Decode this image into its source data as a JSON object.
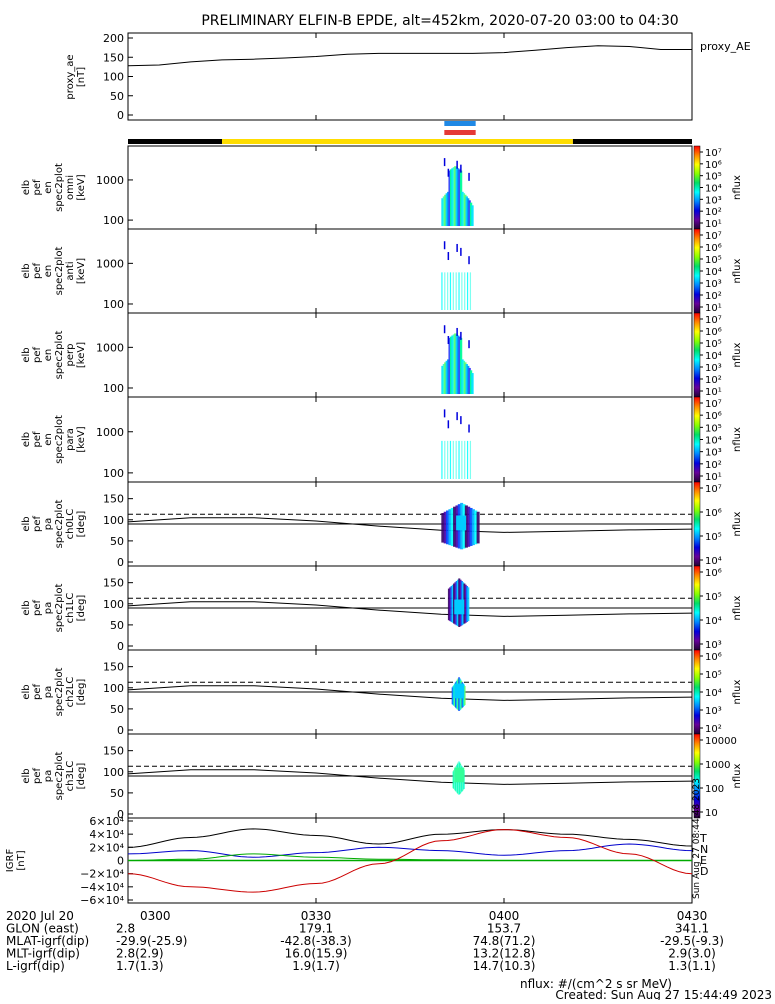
{
  "title": "PRELIMINARY ELFIN-B EPDE, alt=452km, 2020-07-20 03:00 to 04:30",
  "time_axis": {
    "ticks": [
      {
        "label": "0300",
        "minute": 0
      },
      {
        "label": "0330",
        "minute": 30
      },
      {
        "label": "0400",
        "minute": 60
      },
      {
        "label": "0430",
        "minute": 90
      }
    ]
  },
  "panels": [
    {
      "ylabel": [
        "proxy_ae",
        "[nT]"
      ],
      "ytick_labels": [
        "200",
        "150",
        "100",
        "50",
        "0"
      ],
      "right_label": "proxy_AE"
    },
    {
      "ylabel": [
        "elb",
        "pef",
        "en",
        "spec2plot",
        "omni",
        "[keV]"
      ],
      "ytick_labels": [
        "1000",
        "100"
      ],
      "cbar_ticks": [
        "10⁷",
        "10⁶",
        "10⁵",
        "10⁴",
        "10³",
        "10²",
        "10¹"
      ],
      "cbar_label": "nflux"
    },
    {
      "ylabel": [
        "elb",
        "pef",
        "en",
        "spec2plot",
        "anti",
        "[keV]"
      ],
      "ytick_labels": [
        "1000",
        "100"
      ],
      "cbar_ticks": [
        "10⁷",
        "10⁶",
        "10⁵",
        "10⁴",
        "10³",
        "10²",
        "10¹"
      ],
      "cbar_label": "nflux"
    },
    {
      "ylabel": [
        "elb",
        "pef",
        "en",
        "spec2plot",
        "perp",
        "[keV]"
      ],
      "ytick_labels": [
        "1000",
        "100"
      ],
      "cbar_ticks": [
        "10⁷",
        "10⁶",
        "10⁵",
        "10⁴",
        "10³",
        "10²",
        "10¹"
      ],
      "cbar_label": "nflux"
    },
    {
      "ylabel": [
        "elb",
        "pef",
        "en",
        "spec2plot",
        "para",
        "[keV]"
      ],
      "ytick_labels": [
        "1000",
        "100"
      ],
      "cbar_ticks": [
        "10⁷",
        "10⁶",
        "10⁵",
        "10⁴",
        "10³",
        "10²",
        "10¹"
      ],
      "cbar_label": "nflux"
    },
    {
      "ylabel": [
        "elb",
        "pef",
        "pa",
        "spec2plot",
        "ch0LC",
        "[deg]"
      ],
      "ytick_labels": [
        "150",
        "100",
        "50",
        "0"
      ],
      "cbar_ticks": [
        "10⁷",
        "10⁶",
        "10⁵",
        "10⁴"
      ],
      "cbar_label": "nflux"
    },
    {
      "ylabel": [
        "elb",
        "pef",
        "pa",
        "spec2plot",
        "ch1LC",
        "[deg]"
      ],
      "ytick_labels": [
        "150",
        "100",
        "50",
        "0"
      ],
      "cbar_ticks": [
        "10⁶",
        "10⁵",
        "10⁴",
        "10³"
      ],
      "cbar_label": "nflux"
    },
    {
      "ylabel": [
        "elb",
        "pef",
        "pa",
        "spec2plot",
        "ch2LC",
        "[deg]"
      ],
      "ytick_labels": [
        "150",
        "100",
        "50",
        "0"
      ],
      "cbar_ticks": [
        "10⁶",
        "10⁵",
        "10⁴",
        "10³",
        "10²"
      ],
      "cbar_label": "nflux"
    },
    {
      "ylabel": [
        "elb",
        "pef",
        "pa",
        "spec2plot",
        "ch3LC",
        "[deg]"
      ],
      "ytick_labels": [
        "150",
        "100",
        "50",
        "0"
      ],
      "cbar_ticks": [
        "10000",
        "1000",
        "100",
        "10"
      ],
      "cbar_label": "nflux"
    },
    {
      "ylabel": [
        "IGRF",
        "[nT]"
      ],
      "ytick_labels": [
        "6×10⁴",
        "4×10⁴",
        "2×10⁴",
        "0",
        "−2×10⁴",
        "−4×10⁴",
        "−6×10⁴"
      ],
      "legend": [
        "T",
        "N",
        "E",
        "D"
      ],
      "side_text": "Sun Aug 27 08:44:48 2023"
    }
  ],
  "chart_data": {
    "type": "line",
    "x_units": "minutes after 2020-07-20 03:00",
    "xlim": [
      0,
      90
    ],
    "proxy_ae": {
      "ylim": [
        0,
        200
      ],
      "x": [
        0,
        5,
        10,
        15,
        20,
        25,
        30,
        35,
        40,
        45,
        50,
        55,
        60,
        65,
        70,
        75,
        80,
        85,
        90
      ],
      "y": [
        128,
        130,
        138,
        143,
        145,
        148,
        152,
        158,
        160,
        160,
        160,
        160,
        162,
        168,
        175,
        180,
        178,
        170,
        170
      ]
    },
    "science_zone_bar": {
      "segments": [
        {
          "start": 0,
          "end": 15,
          "color": "#000000"
        },
        {
          "start": 15,
          "end": 71,
          "color": "#ffdd00"
        },
        {
          "start": 71,
          "end": 90,
          "color": "#000000"
        }
      ],
      "markers": [
        {
          "start": 50,
          "end": 55,
          "color": "#1e88e5"
        },
        {
          "start": 50,
          "end": 55,
          "color": "#e53935"
        }
      ]
    },
    "energy_spectrograms": {
      "ylim_keV": [
        60,
        7000
      ],
      "burst_minutes": [
        50,
        55
      ],
      "peak_flux": [
        100000,
        10000,
        100000,
        10000
      ]
    },
    "pitch_angle_spectrograms": {
      "ylim_deg": [
        0,
        180
      ],
      "burst_minutes": [
        50,
        56
      ],
      "x": [
        0,
        10,
        20,
        30,
        40,
        50,
        60,
        70,
        80,
        90
      ],
      "loss_cone": [
        95,
        105,
        105,
        97,
        85,
        75,
        70,
        73,
        76,
        78
      ],
      "anti_loss_cone_dashed": [
        113,
        113,
        113,
        113,
        113,
        113,
        113,
        113,
        113,
        113
      ],
      "loss_cone_solid_flat": [
        90,
        90,
        90,
        90,
        90,
        90,
        90,
        90,
        90,
        90
      ]
    },
    "igrf": {
      "ylim": [
        -60000,
        60000
      ],
      "series": [
        {
          "name": "T",
          "color": "#000000",
          "x": [
            0,
            10,
            20,
            30,
            40,
            50,
            60,
            70,
            80,
            90
          ],
          "y": [
            20000,
            35000,
            48000,
            38000,
            25000,
            40000,
            47000,
            40000,
            32000,
            22000
          ]
        },
        {
          "name": "N",
          "color": "#0000cc",
          "x": [
            0,
            10,
            20,
            30,
            40,
            50,
            60,
            70,
            80,
            90
          ],
          "y": [
            10000,
            15000,
            5000,
            12000,
            20000,
            15000,
            8000,
            15000,
            25000,
            15000
          ]
        },
        {
          "name": "E",
          "color": "#00aa00",
          "x": [
            0,
            10,
            20,
            30,
            40,
            50,
            60,
            70,
            80,
            90
          ],
          "y": [
            0,
            2000,
            10000,
            5000,
            2000,
            1000,
            0,
            0,
            0,
            0
          ]
        },
        {
          "name": "D",
          "color": "#cc0000",
          "x": [
            0,
            10,
            20,
            30,
            40,
            50,
            60,
            70,
            80,
            90
          ],
          "y": [
            -20000,
            -40000,
            -48000,
            -35000,
            -5000,
            30000,
            47000,
            35000,
            10000,
            -20000
          ]
        }
      ]
    }
  },
  "footer": {
    "rows": [
      {
        "label": "2020 Jul 20",
        "values": [
          "0300",
          "0330",
          "0400",
          "0430"
        ]
      },
      {
        "label": "GLON (east)",
        "values": [
          "2.8",
          "179.1",
          "153.7",
          "341.1"
        ]
      },
      {
        "label": "MLAT-igrf(dip)",
        "values": [
          "-29.9(-25.9)",
          "-42.8(-38.3)",
          "74.8(71.2)",
          "-29.5(-9.3)"
        ]
      },
      {
        "label": "MLT-igrf(dip)",
        "values": [
          "2.8(2.9)",
          "16.0(15.9)",
          "13.2(12.8)",
          "2.9(3.0)"
        ]
      },
      {
        "label": "L-igrf(dip)",
        "values": [
          "1.7(1.3)",
          "1.9(1.7)",
          "14.7(10.3)",
          "1.3(1.1)"
        ]
      }
    ],
    "units_note": "nflux: #/(cm^2 s sr MeV)",
    "created": "Created: Sun Aug 27 15:44:49 2023"
  }
}
